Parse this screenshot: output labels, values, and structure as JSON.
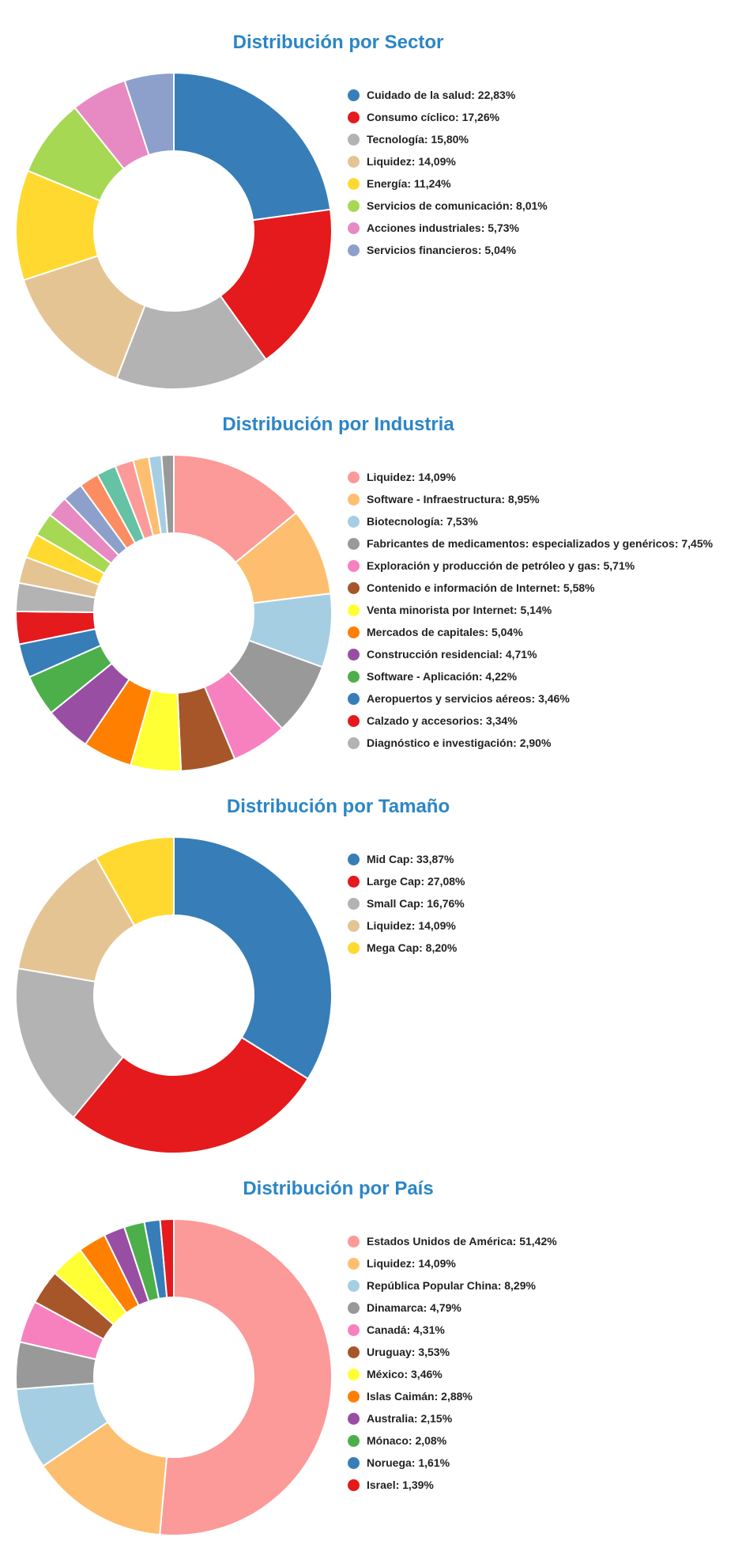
{
  "chart_data": [
    {
      "type": "pie",
      "title": "Distribución por Sector",
      "legend_position": "right",
      "slices": [
        {
          "label": "Cuidado de la salud: 22,83%",
          "value": 22.83,
          "color": "#377EB8"
        },
        {
          "label": "Consumo cíclico: 17,26%",
          "value": 17.26,
          "color": "#E41A1C"
        },
        {
          "label": "Tecnología: 15,80%",
          "value": 15.8,
          "color": "#B3B3B3"
        },
        {
          "label": "Liquidez: 14,09%",
          "value": 14.09,
          "color": "#E5C494"
        },
        {
          "label": "Energía: 11,24%",
          "value": 11.24,
          "color": "#FFD92F"
        },
        {
          "label": "Servicios de comunicación: 8,01%",
          "value": 8.01,
          "color": "#A6D854"
        },
        {
          "label": "Acciones industriales: 5,73%",
          "value": 5.73,
          "color": "#E78AC3"
        },
        {
          "label": "Servicios financieros: 5,04%",
          "value": 5.04,
          "color": "#8DA0CB"
        }
      ],
      "unlabeled_slices": []
    },
    {
      "type": "pie",
      "title": "Distribución por Industria",
      "legend_position": "right",
      "slices": [
        {
          "label": "Liquidez: 14,09%",
          "value": 14.09,
          "color": "#FB9A99"
        },
        {
          "label": "Software - Infraestructura: 8,95%",
          "value": 8.95,
          "color": "#FDBF6F"
        },
        {
          "label": "Biotecnología: 7,53%",
          "value": 7.53,
          "color": "#A6CEE3"
        },
        {
          "label": "Fabricantes de medicamentos: especializados y genéricos: 7,45%",
          "value": 7.45,
          "color": "#999999"
        },
        {
          "label": "Exploración y producción de petróleo y gas: 5,71%",
          "value": 5.71,
          "color": "#F781BF"
        },
        {
          "label": "Contenido e información de Internet: 5,58%",
          "value": 5.58,
          "color": "#A65628"
        },
        {
          "label": "Venta minorista por Internet: 5,14%",
          "value": 5.14,
          "color": "#FFFF33"
        },
        {
          "label": "Mercados de capitales: 5,04%",
          "value": 5.04,
          "color": "#FF7F00"
        },
        {
          "label": "Construcción residencial: 4,71%",
          "value": 4.71,
          "color": "#984EA3"
        },
        {
          "label": "Software - Aplicación: 4,22%",
          "value": 4.22,
          "color": "#4DAF4A"
        },
        {
          "label": "Aeropuertos y servicios aéreos: 3,46%",
          "value": 3.46,
          "color": "#377EB8"
        },
        {
          "label": "Calzado y accesorios: 3,34%",
          "value": 3.34,
          "color": "#E41A1C"
        },
        {
          "label": "Diagnóstico e investigación: 2,90%",
          "value": 2.9,
          "color": "#B3B3B3"
        }
      ],
      "unlabeled_slices": [
        {
          "value": 2.7,
          "color": "#E5C494"
        },
        {
          "value": 2.5,
          "color": "#FFD92F"
        },
        {
          "value": 2.4,
          "color": "#A6D854"
        },
        {
          "value": 2.2,
          "color": "#E78AC3"
        },
        {
          "value": 2.1,
          "color": "#8DA0CB"
        },
        {
          "value": 2.0,
          "color": "#FC8D62"
        },
        {
          "value": 2.0,
          "color": "#66C2A5"
        },
        {
          "value": 1.9,
          "color": "#FB9A99"
        },
        {
          "value": 1.6,
          "color": "#FDBF6F"
        },
        {
          "value": 1.3,
          "color": "#A6CEE3"
        },
        {
          "value": 1.25,
          "color": "#999999"
        }
      ]
    },
    {
      "type": "pie",
      "title": "Distribución por Tamaño",
      "legend_position": "right",
      "slices": [
        {
          "label": "Mid Cap: 33,87%",
          "value": 33.87,
          "color": "#377EB8"
        },
        {
          "label": "Large Cap: 27,08%",
          "value": 27.08,
          "color": "#E41A1C"
        },
        {
          "label": "Small Cap: 16,76%",
          "value": 16.76,
          "color": "#B3B3B3"
        },
        {
          "label": "Liquidez: 14,09%",
          "value": 14.09,
          "color": "#E5C494"
        },
        {
          "label": "Mega Cap: 8,20%",
          "value": 8.2,
          "color": "#FFD92F"
        }
      ],
      "unlabeled_slices": []
    },
    {
      "type": "pie",
      "title": "Distribución por País",
      "legend_position": "right",
      "slices": [
        {
          "label": "Estados Unidos de América: 51,42%",
          "value": 51.42,
          "color": "#FB9A99"
        },
        {
          "label": "Liquidez: 14,09%",
          "value": 14.09,
          "color": "#FDBF6F"
        },
        {
          "label": "República Popular China: 8,29%",
          "value": 8.29,
          "color": "#A6CEE3"
        },
        {
          "label": "Dinamarca: 4,79%",
          "value": 4.79,
          "color": "#999999"
        },
        {
          "label": "Canadá: 4,31%",
          "value": 4.31,
          "color": "#F781BF"
        },
        {
          "label": "Uruguay: 3,53%",
          "value": 3.53,
          "color": "#A65628"
        },
        {
          "label": "México: 3,46%",
          "value": 3.46,
          "color": "#FFFF33"
        },
        {
          "label": "Islas Caimán: 2,88%",
          "value": 2.88,
          "color": "#FF7F00"
        },
        {
          "label": "Australia: 2,15%",
          "value": 2.15,
          "color": "#984EA3"
        },
        {
          "label": "Mónaco: 2,08%",
          "value": 2.08,
          "color": "#4DAF4A"
        },
        {
          "label": "Noruega: 1,61%",
          "value": 1.61,
          "color": "#377EB8"
        },
        {
          "label": "Israel: 1,39%",
          "value": 1.39,
          "color": "#E41A1C"
        }
      ],
      "unlabeled_slices": []
    }
  ]
}
